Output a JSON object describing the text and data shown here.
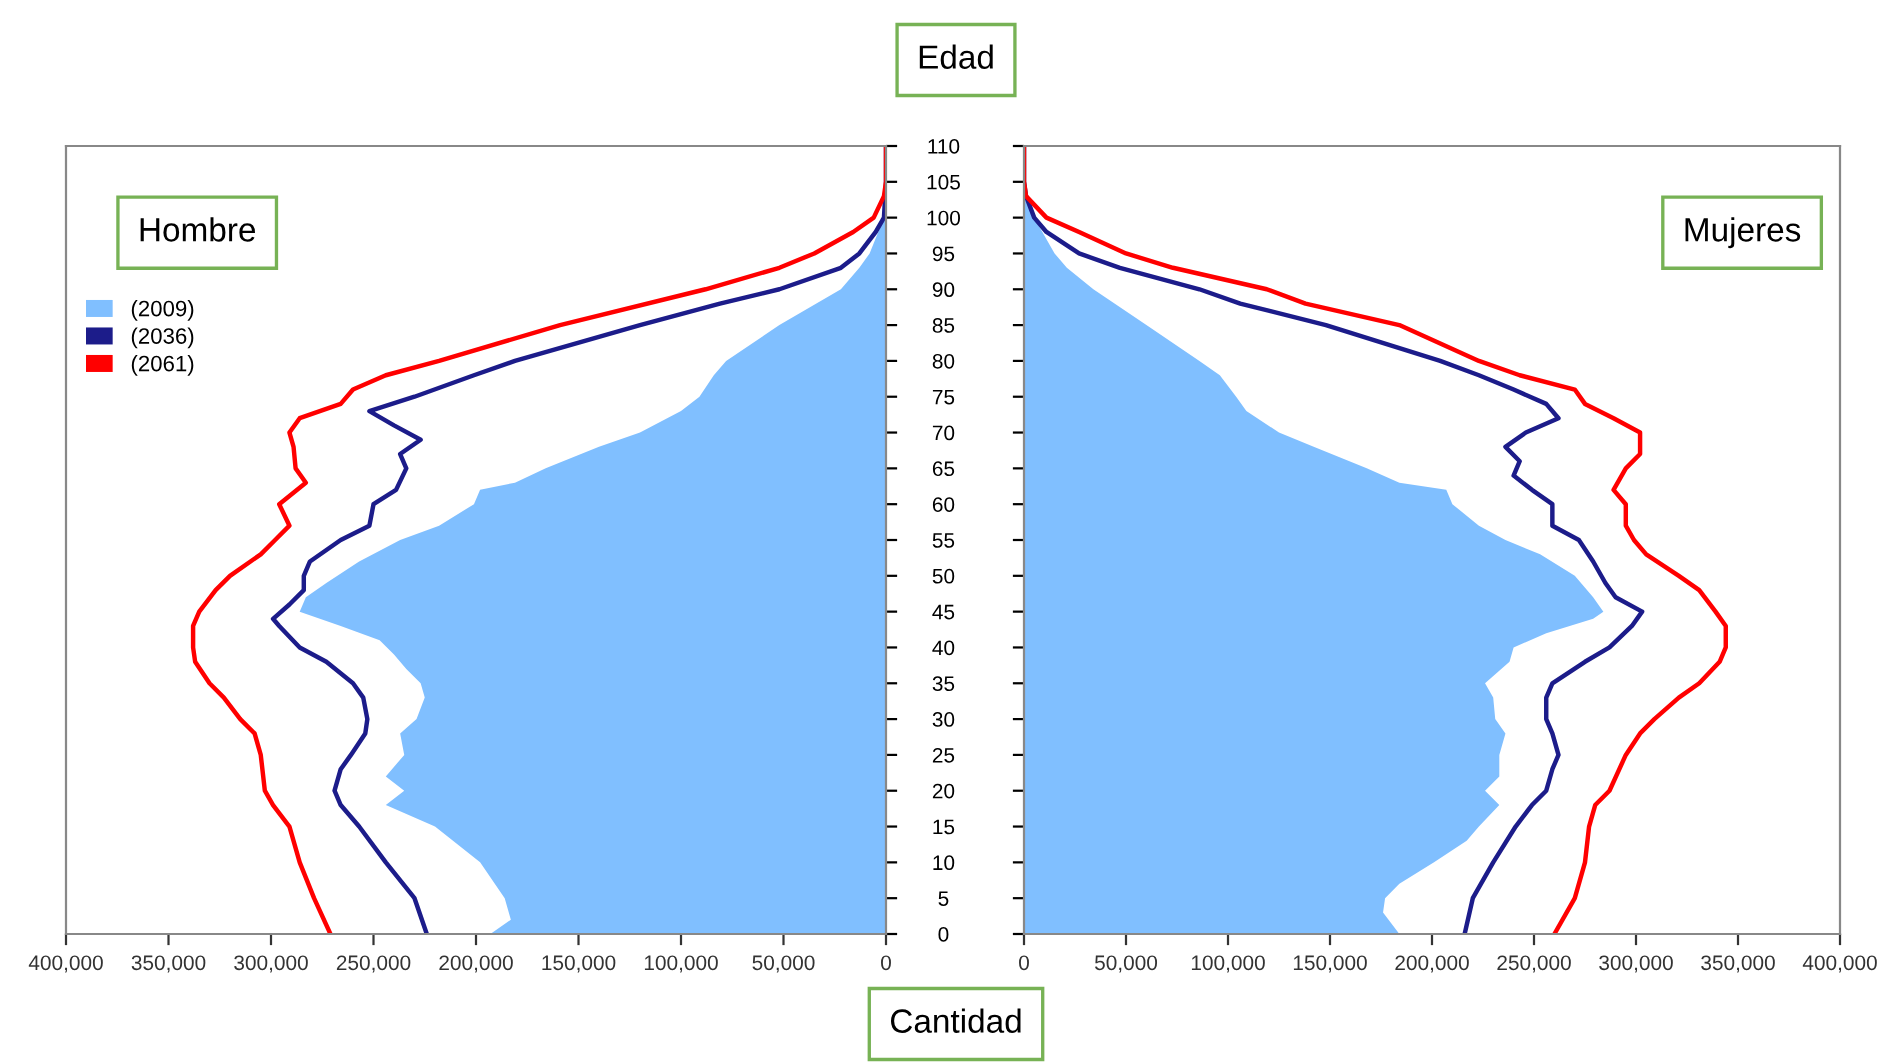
{
  "chart_data": [
    {
      "type": "line",
      "title": "Hombre",
      "ylabel": "Edad",
      "xlabel": "Cantidad",
      "orientation": "horizontal",
      "legend": "top left",
      "tick_labels": "x",
      "grid": false,
      "xlim": [
        400000,
        0
      ],
      "xticks": [
        {
          "value": 400000,
          "label": "400,000"
        },
        {
          "value": 350000,
          "label": "350,000"
        },
        {
          "value": 300000,
          "label": "300,000"
        },
        {
          "value": 250000,
          "label": "250,000"
        },
        {
          "value": 200000,
          "label": "200,000"
        },
        {
          "value": 150000,
          "label": "150,000"
        },
        {
          "value": 100000,
          "label": "100,000"
        },
        {
          "value": 50000,
          "label": "50,000"
        },
        0
      ],
      "ylim": [
        0,
        110
      ],
      "yticks": [
        0,
        5,
        10,
        15,
        20,
        25,
        30,
        35,
        40,
        45,
        50,
        55,
        60,
        65,
        70,
        75,
        80,
        85,
        90,
        95,
        100,
        105,
        110
      ],
      "series": [
        {
          "name": "(2009)",
          "type": "area",
          "color": "#80bfff",
          "x": [
            0,
            2,
            5,
            10,
            15,
            18,
            20,
            22,
            25,
            28,
            30,
            33,
            35,
            37,
            39,
            41,
            43,
            45,
            47,
            49,
            52,
            55,
            57,
            60,
            62,
            63,
            65,
            68,
            70,
            73,
            75,
            78,
            80,
            85,
            90,
            93,
            95,
            100,
            105,
            110
          ],
          "values": [
            193000,
            183000,
            186000,
            198000,
            220000,
            244000,
            235000,
            244000,
            235000,
            237000,
            229000,
            225000,
            227000,
            234000,
            240000,
            247000,
            266000,
            286000,
            283000,
            273000,
            257000,
            237000,
            218000,
            201000,
            198000,
            181000,
            166000,
            140000,
            120000,
            100000,
            91000,
            84000,
            78000,
            52000,
            22000,
            13000,
            8000,
            1000,
            0,
            0
          ]
        },
        {
          "name": "(2036)",
          "color": "#1c1c8a",
          "x": [
            0,
            5,
            10,
            15,
            18,
            20,
            23,
            25,
            28,
            30,
            33,
            35,
            38,
            40,
            43,
            44,
            46,
            48,
            50,
            52,
            55,
            57,
            60,
            62,
            65,
            67,
            69,
            71,
            73,
            75,
            78,
            80,
            85,
            88,
            90,
            93,
            95,
            98,
            100,
            105,
            110
          ],
          "values": [
            224000,
            230000,
            244000,
            257000,
            266000,
            269000,
            266000,
            261000,
            254000,
            253000,
            255000,
            260000,
            273000,
            286000,
            296000,
            299000,
            291000,
            284000,
            284000,
            281000,
            266000,
            252000,
            250000,
            239000,
            234000,
            237000,
            227000,
            240000,
            252000,
            230000,
            201000,
            181000,
            120000,
            81000,
            52000,
            22000,
            13000,
            5000,
            1000,
            0,
            0
          ]
        },
        {
          "name": "(2061)",
          "color": "#ff0000",
          "x": [
            0,
            5,
            10,
            15,
            18,
            20,
            25,
            28,
            30,
            33,
            35,
            38,
            40,
            43,
            45,
            48,
            50,
            53,
            55,
            57,
            60,
            63,
            65,
            68,
            70,
            72,
            74,
            76,
            78,
            80,
            85,
            90,
            93,
            95,
            98,
            100,
            103,
            105,
            110
          ],
          "values": [
            271000,
            279000,
            286000,
            291000,
            299000,
            303000,
            305000,
            308000,
            315000,
            323000,
            330000,
            337000,
            338000,
            338000,
            335000,
            327000,
            320000,
            305000,
            298000,
            291000,
            296000,
            283000,
            288000,
            289000,
            291000,
            286000,
            266000,
            260000,
            244000,
            218000,
            159000,
            88000,
            52000,
            35000,
            16000,
            6000,
            1000,
            0,
            0
          ]
        }
      ]
    },
    {
      "type": "line",
      "title": "Mujeres",
      "orientation": "horizontal",
      "grid": false,
      "xlim": [
        0,
        400000
      ],
      "xticks": [
        0,
        {
          "value": 50000,
          "label": "50,000"
        },
        {
          "value": 100000,
          "label": "100,000"
        },
        {
          "value": 150000,
          "label": "150,000"
        },
        {
          "value": 200000,
          "label": "200,000"
        },
        {
          "value": 250000,
          "label": "250,000"
        },
        {
          "value": 300000,
          "label": "300,000"
        },
        {
          "value": 350000,
          "label": "350,000"
        },
        {
          "value": 400000,
          "label": "400,000"
        }
      ],
      "ylim": [
        0,
        110
      ],
      "yticks": [
        0,
        5,
        10,
        15,
        20,
        25,
        30,
        35,
        40,
        45,
        50,
        55,
        60,
        65,
        70,
        75,
        80,
        85,
        90,
        95,
        100,
        105,
        110
      ],
      "series": [
        {
          "type": "area",
          "color": "#80bfff",
          "x": [
            0,
            3,
            5,
            7,
            10,
            13,
            15,
            18,
            20,
            22,
            25,
            28,
            30,
            33,
            35,
            38,
            40,
            42,
            44,
            45,
            47,
            50,
            53,
            55,
            57,
            60,
            62,
            63,
            65,
            68,
            70,
            73,
            75,
            78,
            80,
            85,
            90,
            93,
            95,
            100,
            103,
            105,
            110
          ],
          "values": [
            184000,
            176000,
            177000,
            184000,
            201000,
            217000,
            223000,
            233000,
            226000,
            233000,
            233000,
            236000,
            231000,
            230000,
            226000,
            238000,
            240000,
            256000,
            279000,
            284000,
            279000,
            270000,
            253000,
            236000,
            223000,
            210000,
            207000,
            184000,
            168000,
            142000,
            125000,
            109000,
            104000,
            96000,
            86000,
            60000,
            34000,
            21000,
            15000,
            5000,
            1000,
            0,
            0
          ]
        },
        {
          "color": "#1c1c8a",
          "x": [
            0,
            5,
            10,
            15,
            18,
            20,
            23,
            25,
            28,
            30,
            33,
            35,
            38,
            40,
            43,
            45,
            47,
            49,
            52,
            55,
            57,
            60,
            62,
            64,
            66,
            68,
            70,
            72,
            74,
            76,
            78,
            80,
            85,
            88,
            90,
            93,
            95,
            98,
            100,
            103,
            105,
            110
          ],
          "values": [
            216000,
            220000,
            230000,
            241000,
            249000,
            256000,
            259000,
            262000,
            259000,
            256000,
            256000,
            259000,
            275000,
            287000,
            298000,
            303000,
            290000,
            285000,
            279000,
            272000,
            259000,
            259000,
            249000,
            240000,
            243000,
            236000,
            246000,
            262000,
            256000,
            240000,
            223000,
            204000,
            148000,
            106000,
            86000,
            47000,
            27000,
            11000,
            5000,
            1000,
            0,
            0
          ]
        },
        {
          "color": "#ff0000",
          "x": [
            0,
            5,
            10,
            15,
            18,
            20,
            25,
            28,
            30,
            33,
            35,
            38,
            40,
            43,
            45,
            48,
            50,
            53,
            55,
            57,
            60,
            62,
            65,
            67,
            70,
            72,
            74,
            76,
            78,
            80,
            85,
            88,
            90,
            93,
            95,
            98,
            100,
            103,
            105,
            110
          ],
          "values": [
            260000,
            270000,
            275000,
            277000,
            280000,
            287000,
            295000,
            302000,
            309000,
            321000,
            331000,
            341000,
            344000,
            344000,
            339000,
            331000,
            321000,
            305000,
            299000,
            295000,
            295000,
            289000,
            295000,
            302000,
            302000,
            289000,
            275000,
            270000,
            243000,
            223000,
            184000,
            138000,
            119000,
            73000,
            50000,
            27000,
            11000,
            1000,
            0,
            0
          ]
        }
      ]
    }
  ]
}
